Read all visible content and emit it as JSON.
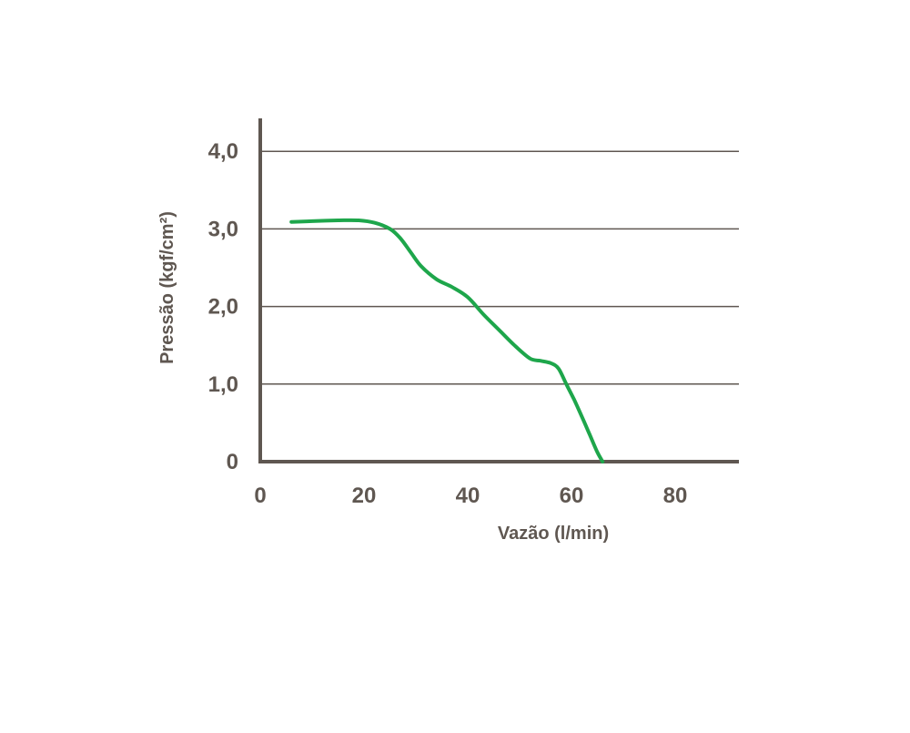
{
  "chart_data": {
    "type": "line",
    "title": "",
    "xlabel": "Vazão (l/min)",
    "ylabel": "Pressão (kgf/cm²)",
    "xlim": [
      0,
      92
    ],
    "ylim": [
      0,
      4.4
    ],
    "x_ticks": [
      0,
      20,
      40,
      60,
      80
    ],
    "x_tick_labels": [
      "0",
      "20",
      "40",
      "60",
      "80"
    ],
    "y_ticks": [
      0,
      1,
      2,
      3,
      4
    ],
    "y_tick_labels": [
      "0",
      "1,0",
      "2,0",
      "3,0",
      "4,0"
    ],
    "grid": "horizontal",
    "legend": "none",
    "series": [
      {
        "name": "",
        "color": "#1ea64b",
        "x": [
          6,
          10,
          15,
          19,
          22,
          25,
          27,
          29,
          31,
          34,
          37,
          40,
          43,
          46,
          49,
          52,
          54,
          56,
          57.5,
          59,
          60.5,
          62,
          63.5,
          65,
          66
        ],
        "y": [
          3.09,
          3.1,
          3.11,
          3.11,
          3.08,
          3.0,
          2.88,
          2.7,
          2.52,
          2.35,
          2.25,
          2.12,
          1.9,
          1.7,
          1.5,
          1.33,
          1.3,
          1.27,
          1.2,
          1.0,
          0.8,
          0.58,
          0.35,
          0.12,
          0.0
        ]
      }
    ],
    "colors": {
      "axis": "#5f5751",
      "grid": "#5f5751",
      "text": "#5f5751",
      "line": "#1ea64b"
    }
  }
}
